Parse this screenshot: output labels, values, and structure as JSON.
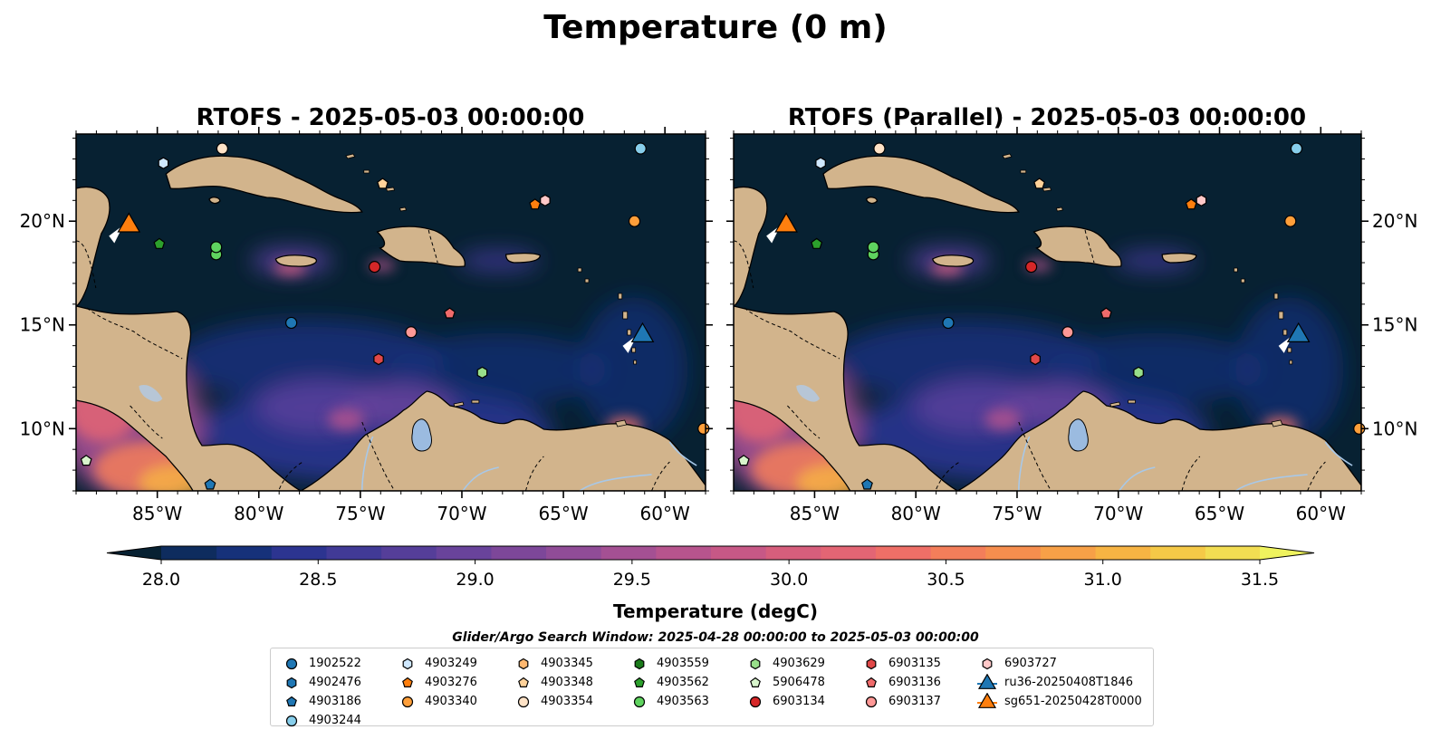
{
  "figure_title": "Temperature (0 m)",
  "colors": {
    "ocean_deep": "#072132",
    "land": "#d2b48c",
    "lake": "#9bbbe0",
    "river": "#a8c8e8",
    "colormap": [
      "#072132",
      "#0e2c5e",
      "#16317a",
      "#2c3490",
      "#413a96",
      "#553e99",
      "#69439b",
      "#7d4799",
      "#904c97",
      "#a45093",
      "#b7548d",
      "#c75886",
      "#d65e7c",
      "#e36574",
      "#ee6f67",
      "#f37e5a",
      "#f68e4e",
      "#f7a047",
      "#f7b443",
      "#f5c947",
      "#f2dd52",
      "#eff35e"
    ]
  },
  "panels": [
    {
      "title": "RTOFS - 2025-05-03 00:00:00",
      "left_ylabels": true
    },
    {
      "title": "RTOFS (Parallel) - 2025-05-03 00:00:00",
      "left_ylabels": false
    }
  ],
  "map_extent": {
    "lon": [
      -89,
      -58
    ],
    "lat": [
      7,
      24.2
    ]
  },
  "axis_ticks": {
    "lon_labels": [
      "85°W",
      "80°W",
      "75°W",
      "70°W",
      "65°W",
      "60°W"
    ],
    "lon_values": [
      -85,
      -80,
      -75,
      -70,
      -65,
      -60
    ],
    "lat_labels": [
      "10°N",
      "15°N",
      "20°N"
    ],
    "lat_values": [
      10,
      15,
      20
    ]
  },
  "colorbar": {
    "label": "Temperature (degC)",
    "min": 27.75,
    "max": 31.5,
    "tick_values": [
      28.0,
      28.5,
      29.0,
      29.5,
      30.0,
      30.5,
      31.0,
      31.5
    ],
    "tick_labels": [
      "28.0",
      "28.5",
      "29.0",
      "29.5",
      "30.0",
      "30.5",
      "31.0",
      "31.5"
    ],
    "extend": "both"
  },
  "subtitle": "Glider/Argo Search Window: 2025-04-28 00:00:00 to 2025-05-03 00:00:00",
  "chart_data": {
    "type": "scatter",
    "title": "Temperature (0 m)",
    "xlabel": "",
    "ylabel": "",
    "xlim": [
      -89,
      -58
    ],
    "ylim": [
      7,
      24.2
    ],
    "legend_placement": "bottom-center",
    "series": [
      {
        "name": "1902522",
        "marker": "circle",
        "color": "#1f77b4",
        "x": [
          -78.4
        ],
        "y": [
          15.1
        ]
      },
      {
        "name": "4902476",
        "marker": "hexagon",
        "color": "#1f77b4",
        "x": [],
        "y": []
      },
      {
        "name": "4903186",
        "marker": "pentagon",
        "color": "#1f77b4",
        "x": [
          -82.4
        ],
        "y": [
          7.3
        ]
      },
      {
        "name": "4903244",
        "marker": "circle",
        "color": "#87ceeb",
        "x": [
          -61.2
        ],
        "y": [
          23.5
        ]
      },
      {
        "name": "4903249",
        "marker": "hexagon",
        "color": "#cfe8ff",
        "x": [
          -84.7
        ],
        "y": [
          22.8
        ]
      },
      {
        "name": "4903276",
        "marker": "pentagon",
        "color": "#ff7f0e",
        "x": [
          -66.4
        ],
        "y": [
          20.8
        ]
      },
      {
        "name": "4903340",
        "marker": "circle",
        "color": "#ff9f3a",
        "x": [
          -61.5,
          -58.1
        ],
        "y": [
          20.0,
          10.0
        ]
      },
      {
        "name": "4903345",
        "marker": "hexagon",
        "color": "#ffb870",
        "x": [],
        "y": []
      },
      {
        "name": "4903348",
        "marker": "pentagon",
        "color": "#ffd29a",
        "x": [
          -73.9
        ],
        "y": [
          21.8
        ]
      },
      {
        "name": "4903354",
        "marker": "circle",
        "color": "#ffe3c7",
        "x": [
          -81.8
        ],
        "y": [
          23.5
        ]
      },
      {
        "name": "4903559",
        "marker": "hexagon",
        "color": "#1a7a1a",
        "x": [],
        "y": []
      },
      {
        "name": "4903562",
        "marker": "pentagon",
        "color": "#2ca02c",
        "x": [
          -84.9
        ],
        "y": [
          18.9
        ]
      },
      {
        "name": "4903563",
        "marker": "circle",
        "color": "#5fd35f",
        "x": [
          -82.1,
          -82.1
        ],
        "y": [
          18.4,
          18.75
        ]
      },
      {
        "name": "4903629",
        "marker": "hexagon",
        "color": "#98df8a",
        "x": [
          -69.0
        ],
        "y": [
          12.7
        ]
      },
      {
        "name": "5906478",
        "marker": "pentagon",
        "color": "#d8f5cc",
        "x": [
          -88.5
        ],
        "y": [
          8.45
        ]
      },
      {
        "name": "6903134",
        "marker": "circle",
        "color": "#d62728",
        "x": [
          -74.3
        ],
        "y": [
          17.8
        ]
      },
      {
        "name": "6903135",
        "marker": "hexagon",
        "color": "#e04848",
        "x": [
          -74.1
        ],
        "y": [
          13.35
        ]
      },
      {
        "name": "6903136",
        "marker": "pentagon",
        "color": "#f06b6b",
        "x": [
          -70.6
        ],
        "y": [
          15.55
        ]
      },
      {
        "name": "6903137",
        "marker": "circle",
        "color": "#ff9896",
        "x": [
          -72.5
        ],
        "y": [
          14.65
        ]
      },
      {
        "name": "6903727",
        "marker": "hexagon",
        "color": "#ffc8c8",
        "x": [
          -65.9
        ],
        "y": [
          21.0
        ]
      },
      {
        "name": "ru36-20250408T1846",
        "marker": "triangle",
        "color": "#1f77b4",
        "x": [
          -61.1
        ],
        "y": [
          14.6
        ]
      },
      {
        "name": "sg651-20250428T0000",
        "marker": "triangle",
        "color": "#ff7f0e",
        "x": [
          -86.4
        ],
        "y": [
          19.9
        ]
      }
    ]
  }
}
